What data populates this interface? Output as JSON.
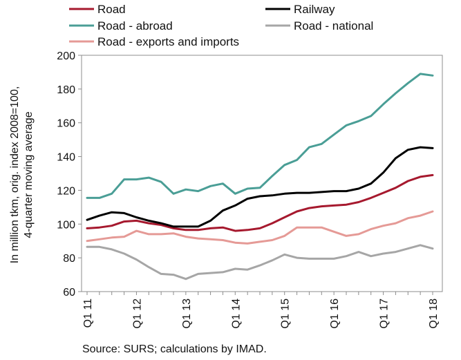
{
  "chart_data": {
    "type": "line",
    "source": "Source: SURS; calculations by IMAD.",
    "ylabel_lines": [
      "In million tkm, orig. index 2008=100,",
      "4-quarter moving average"
    ],
    "ylim": [
      60,
      200
    ],
    "yticks": [
      60,
      80,
      100,
      120,
      140,
      160,
      180,
      200
    ],
    "xtick_labels": [
      "Q1 11",
      "Q1 12",
      "Q1 13",
      "Q1 14",
      "Q1 15",
      "Q1 16",
      "Q1 17",
      "Q1 18"
    ],
    "x_quarters": [
      "Q1 11",
      "Q2 11",
      "Q3 11",
      "Q4 11",
      "Q1 12",
      "Q2 12",
      "Q3 12",
      "Q4 12",
      "Q1 13",
      "Q2 13",
      "Q3 13",
      "Q4 13",
      "Q1 14",
      "Q2 14",
      "Q3 14",
      "Q4 14",
      "Q1 15",
      "Q2 15",
      "Q3 15",
      "Q4 15",
      "Q1 16",
      "Q2 16",
      "Q3 16",
      "Q4 16",
      "Q1 17",
      "Q2 17",
      "Q3 17",
      "Q4 17",
      "Q1 18"
    ],
    "grid": false,
    "legend_position": "top",
    "series": [
      {
        "name": "Road",
        "color": "#a6192e",
        "values": [
          97.5,
          98,
          99,
          101.5,
          102,
          100.5,
          99.5,
          97.5,
          96.5,
          96.5,
          97.5,
          98,
          96,
          96.5,
          97.5,
          100.5,
          104,
          107.5,
          109.5,
          110.5,
          111,
          111.5,
          113,
          115.5,
          118.5,
          121.5,
          125.5,
          128,
          129
        ]
      },
      {
        "name": "Road - abroad",
        "color": "#4a9e96",
        "values": [
          115.5,
          115.5,
          118,
          126.5,
          126.5,
          127.5,
          125,
          118,
          120.5,
          119.5,
          122.5,
          124,
          118,
          121,
          121.5,
          128.5,
          135,
          138,
          145.5,
          147.5,
          153,
          158.5,
          161,
          164,
          171,
          177.5,
          183.5,
          189,
          188
        ]
      },
      {
        "name": "Road - exports and imports",
        "color": "#e59a96",
        "values": [
          90,
          91,
          92,
          92.5,
          96,
          94,
          94,
          94.5,
          92.5,
          91.5,
          91,
          90.5,
          89,
          88.5,
          89.5,
          90.5,
          93,
          98,
          98,
          98,
          95.5,
          93,
          94,
          97,
          99,
          100.5,
          103.5,
          105,
          107.5
        ]
      },
      {
        "name": "Railway",
        "color": "#000000",
        "values": [
          102.5,
          105,
          107,
          106.5,
          104,
          102,
          100.5,
          98.5,
          98.5,
          98.5,
          102,
          108,
          111,
          115,
          116.5,
          117,
          118,
          118.5,
          118.5,
          119,
          119.5,
          119.5,
          121,
          124,
          130.5,
          139,
          144,
          145.5,
          145
        ]
      },
      {
        "name": "Road - national",
        "color": "#a6a6a6",
        "values": [
          86.5,
          86.5,
          85,
          82.5,
          79,
          74.5,
          70.5,
          70,
          67.5,
          70.5,
          71,
          71.5,
          73.5,
          73,
          75.5,
          78.5,
          82,
          80,
          79.5,
          79.5,
          79.5,
          81,
          83.5,
          81,
          82.5,
          83.5,
          85.5,
          87.5,
          85.5
        ]
      }
    ]
  }
}
